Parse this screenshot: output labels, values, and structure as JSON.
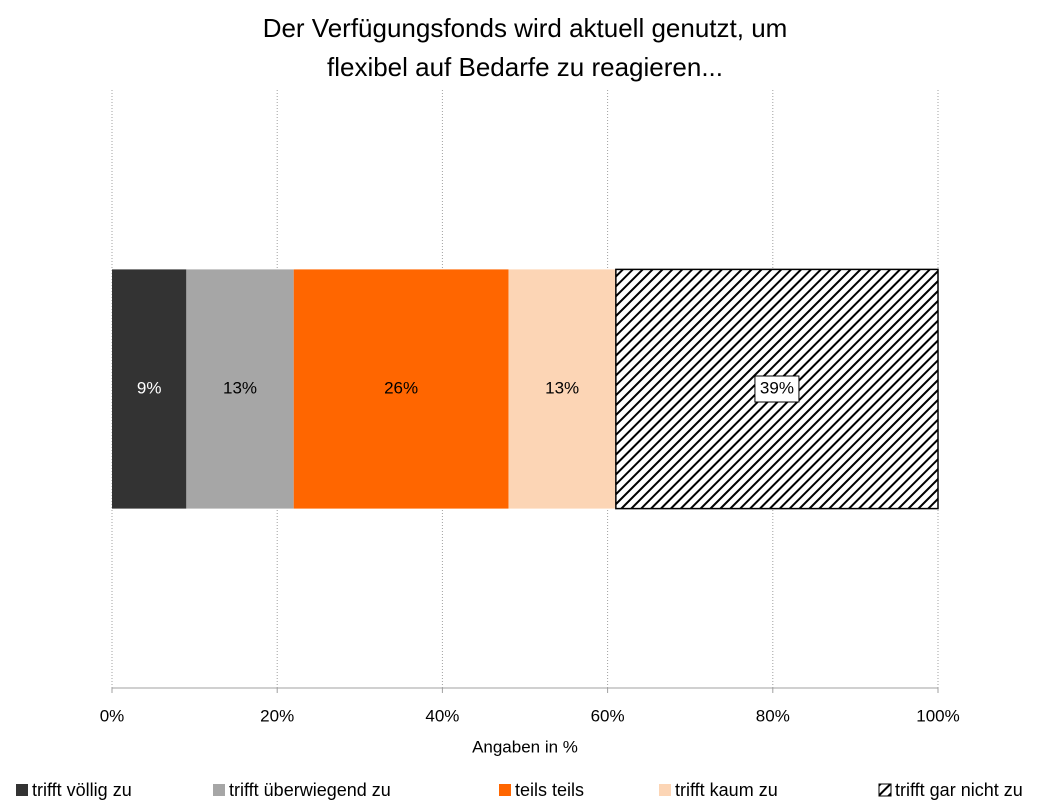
{
  "chart_data": {
    "type": "stacked_barh",
    "title": [
      "Der Verfügungsfonds wird aktuell genutzt, um",
      "flexibel auf Bedarfe zu reagieren..."
    ],
    "x_label": "Angaben in %",
    "categories": [
      null
    ],
    "series": [
      {
        "name": "trifft völlig zu",
        "color": "#333333",
        "label_color": "#ffffff",
        "values": [
          9
        ],
        "value_labels": [
          "9%"
        ]
      },
      {
        "name": "trifft überwiegend zu",
        "color": "#a6a6a6",
        "label_color": "#000000",
        "values": [
          13
        ],
        "value_labels": [
          "13%"
        ]
      },
      {
        "name": "teils teils",
        "color": "#ff6600",
        "label_color": "#000000",
        "values": [
          26
        ],
        "value_labels": [
          "26%"
        ]
      },
      {
        "name": "trifft kaum zu",
        "color": "#fcd5b5",
        "label_color": "#000000",
        "values": [
          13
        ],
        "value_labels": [
          "13%"
        ]
      },
      {
        "name": "trifft gar nicht zu",
        "color": "#000000",
        "pattern": "hatch",
        "label_color": "#000000",
        "values": [
          39
        ],
        "value_labels": [
          "39%"
        ]
      }
    ],
    "xlim": [
      0,
      100
    ],
    "xticks": [
      {
        "value": 0,
        "label": "0%"
      },
      {
        "value": 20,
        "label": "20%"
      },
      {
        "value": 40,
        "label": "40%"
      },
      {
        "value": 60,
        "label": "60%"
      },
      {
        "value": 80,
        "label": "80%"
      },
      {
        "value": 100,
        "label": "100%"
      }
    ],
    "grid": true,
    "legend": "bottom"
  }
}
